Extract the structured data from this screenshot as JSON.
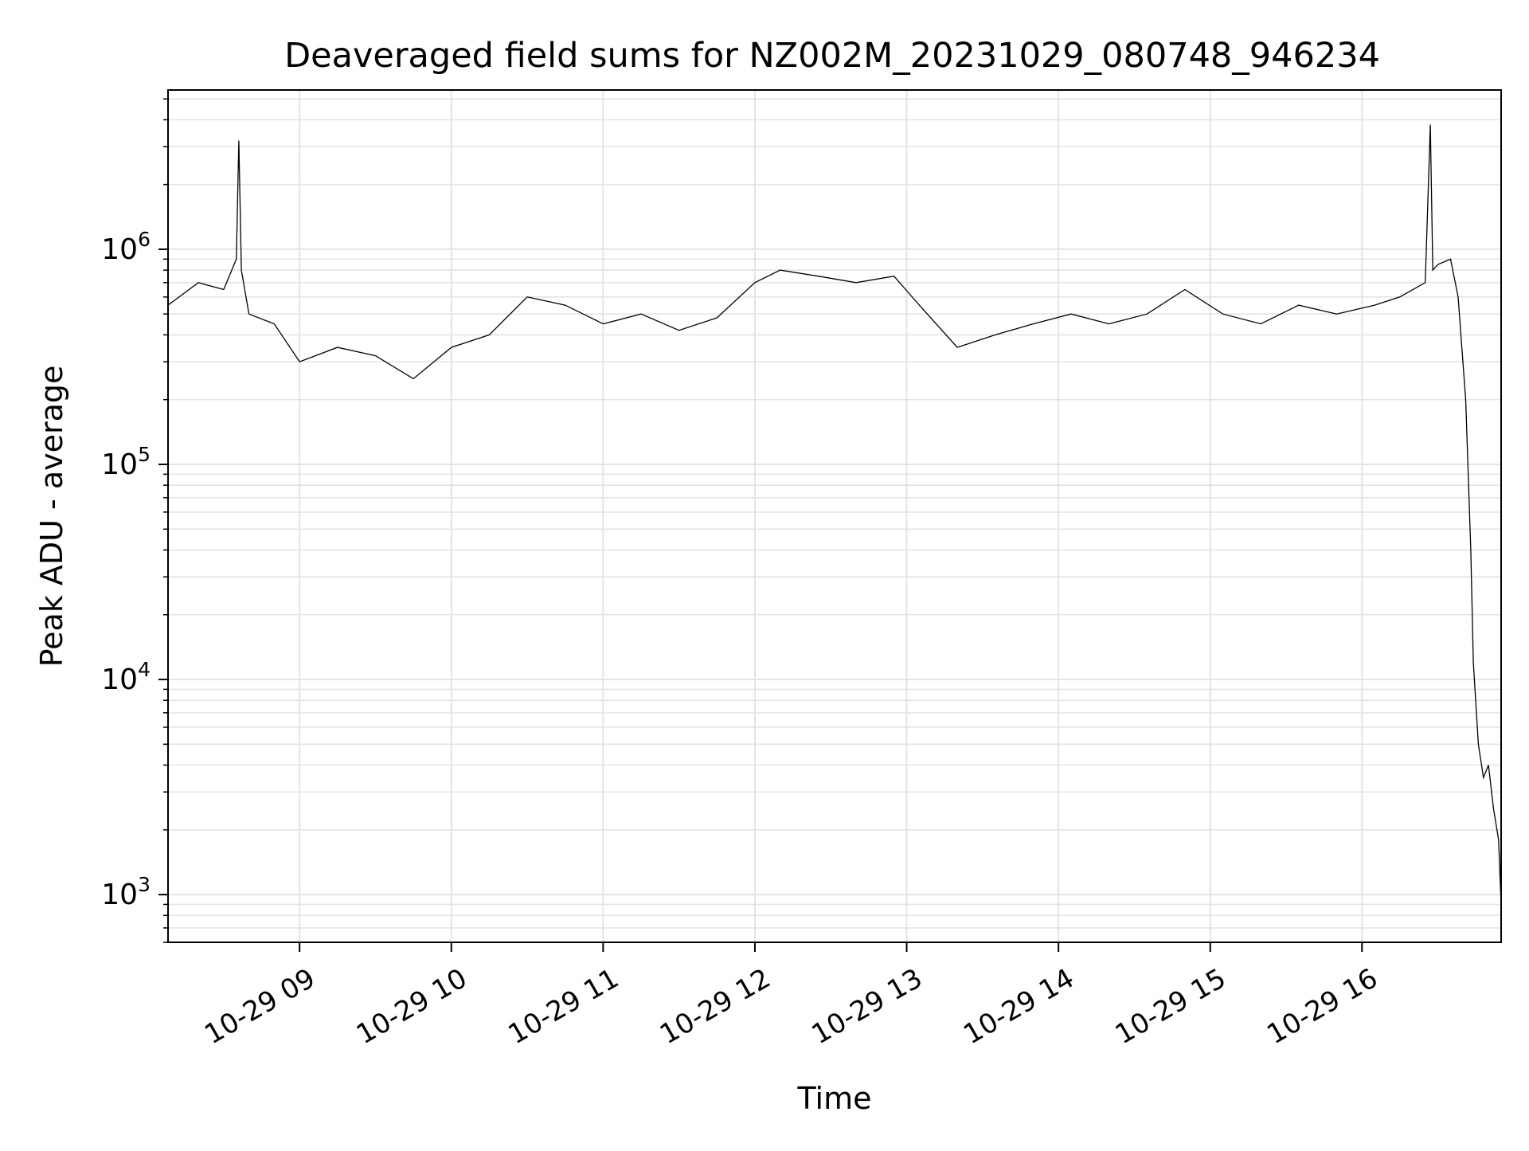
{
  "chart_data": {
    "type": "line",
    "title": "Deaveraged field sums for NZ002M_20231029_080748_946234",
    "xlabel": "Time",
    "ylabel": "Peak ADU - average",
    "yscale": "log",
    "xlim": [
      "2023-10-29 08:08",
      "2023-10-29 16:55"
    ],
    "ylim": [
      600,
      5500000
    ],
    "grid": true,
    "x_ticks": [
      {
        "value": "2023-10-29 09:00",
        "label": "10-29 09"
      },
      {
        "value": "2023-10-29 10:00",
        "label": "10-29 10"
      },
      {
        "value": "2023-10-29 11:00",
        "label": "10-29 11"
      },
      {
        "value": "2023-10-29 12:00",
        "label": "10-29 12"
      },
      {
        "value": "2023-10-29 13:00",
        "label": "10-29 13"
      },
      {
        "value": "2023-10-29 14:00",
        "label": "10-29 14"
      },
      {
        "value": "2023-10-29 15:00",
        "label": "10-29 15"
      },
      {
        "value": "2023-10-29 16:00",
        "label": "10-29 16"
      }
    ],
    "y_ticks": [
      {
        "value": 1000,
        "base": "10",
        "exp": "3"
      },
      {
        "value": 10000,
        "base": "10",
        "exp": "4"
      },
      {
        "value": 100000,
        "base": "10",
        "exp": "5"
      },
      {
        "value": 1000000,
        "base": "10",
        "exp": "6"
      }
    ],
    "series": [
      {
        "color": "#000000",
        "x": [
          "2023-10-29 08:08",
          "2023-10-29 08:20",
          "2023-10-29 08:30",
          "2023-10-29 08:35",
          "2023-10-29 08:36",
          "2023-10-29 08:37",
          "2023-10-29 08:40",
          "2023-10-29 08:50",
          "2023-10-29 09:00",
          "2023-10-29 09:15",
          "2023-10-29 09:30",
          "2023-10-29 09:45",
          "2023-10-29 10:00",
          "2023-10-29 10:15",
          "2023-10-29 10:30",
          "2023-10-29 10:45",
          "2023-10-29 11:00",
          "2023-10-29 11:15",
          "2023-10-29 11:30",
          "2023-10-29 11:45",
          "2023-10-29 12:00",
          "2023-10-29 12:10",
          "2023-10-29 12:25",
          "2023-10-29 12:40",
          "2023-10-29 12:55",
          "2023-10-29 13:05",
          "2023-10-29 13:20",
          "2023-10-29 13:35",
          "2023-10-29 13:50",
          "2023-10-29 14:05",
          "2023-10-29 14:20",
          "2023-10-29 14:35",
          "2023-10-29 14:50",
          "2023-10-29 15:05",
          "2023-10-29 15:20",
          "2023-10-29 15:35",
          "2023-10-29 15:50",
          "2023-10-29 16:05",
          "2023-10-29 16:15",
          "2023-10-29 16:25",
          "2023-10-29 16:27",
          "2023-10-29 16:28",
          "2023-10-29 16:30",
          "2023-10-29 16:35",
          "2023-10-29 16:38",
          "2023-10-29 16:41",
          "2023-10-29 16:43",
          "2023-10-29 16:44",
          "2023-10-29 16:46",
          "2023-10-29 16:48",
          "2023-10-29 16:50",
          "2023-10-29 16:52",
          "2023-10-29 16:54",
          "2023-10-29 16:55"
        ],
        "y": [
          550000,
          700000,
          650000,
          900000,
          3200000,
          800000,
          500000,
          450000,
          300000,
          350000,
          320000,
          250000,
          350000,
          400000,
          600000,
          550000,
          450000,
          500000,
          420000,
          480000,
          700000,
          800000,
          750000,
          700000,
          750000,
          550000,
          350000,
          400000,
          450000,
          500000,
          450000,
          500000,
          650000,
          500000,
          450000,
          550000,
          500000,
          550000,
          600000,
          700000,
          3800000,
          800000,
          850000,
          900000,
          600000,
          200000,
          40000,
          12000,
          5000,
          3500,
          4000,
          2500,
          1800,
          900
        ]
      }
    ]
  }
}
